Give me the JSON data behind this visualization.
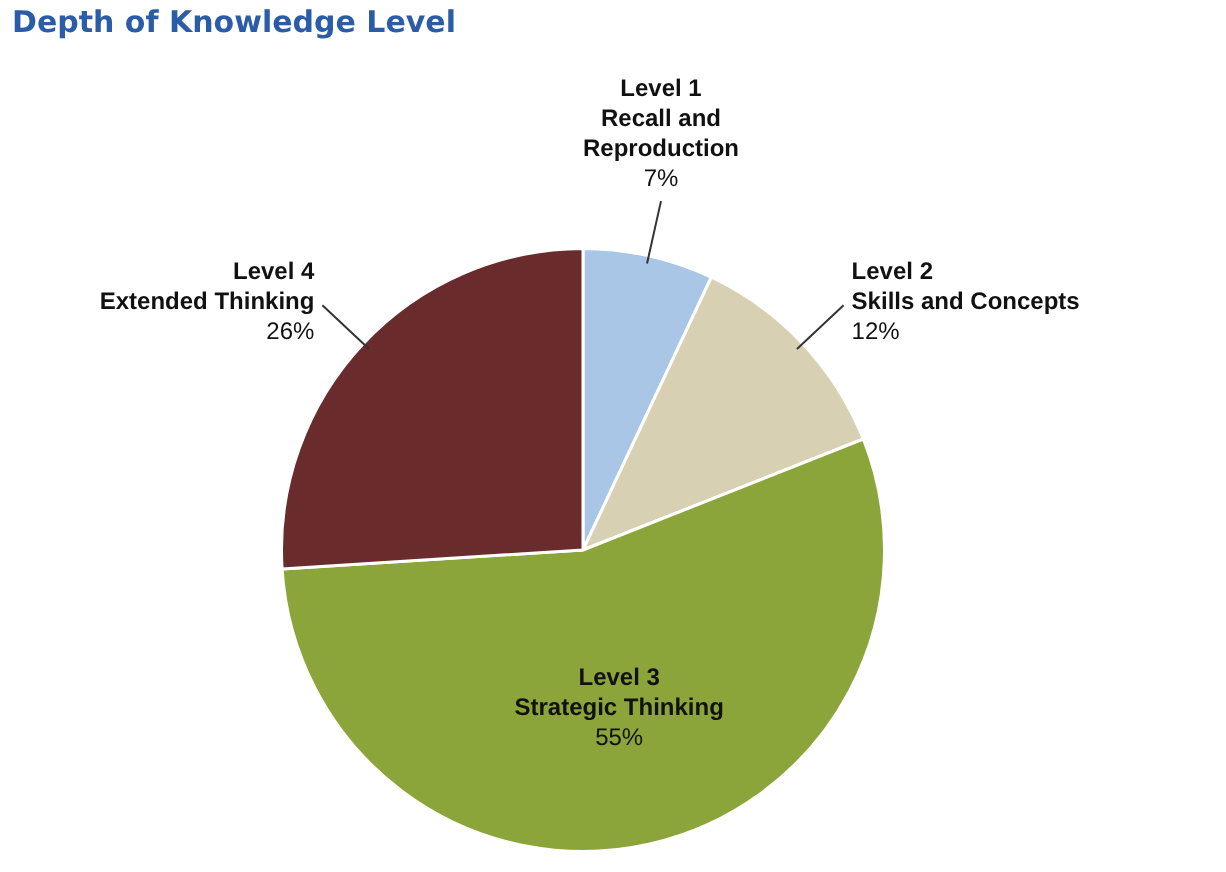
{
  "chart_data": {
    "type": "pie",
    "title": "Depth of Knowledge Level",
    "categories": [
      "Level 1\nRecall and\nReproduction",
      "Level 2\nSkills and Concepts",
      "Level 3\nStrategic Thinking",
      "Level 4\nExtended Thinking"
    ],
    "values": [
      7,
      12,
      55,
      26
    ],
    "value_labels": [
      "7%",
      "12%",
      "55%",
      "26%"
    ],
    "colors": [
      "#a9c6e6",
      "#d8d0b2",
      "#8ba53b",
      "#6a2b2c"
    ],
    "legend": false
  }
}
